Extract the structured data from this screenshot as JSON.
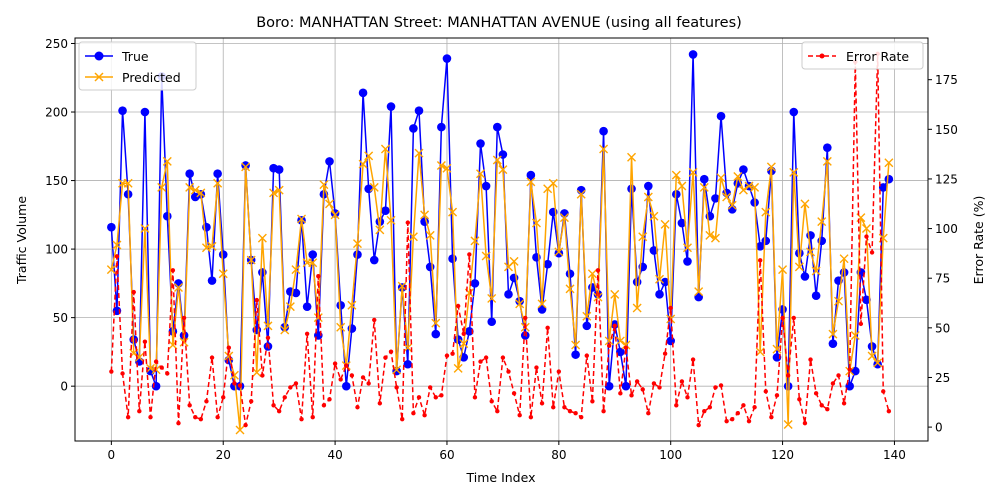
{
  "chart_data": {
    "type": "line",
    "title": "Boro: MANHATTAN Street: MANHATTAN AVENUE (using all features)",
    "xlabel": "Time Index",
    "ylabel": "Traffic Volume",
    "y2label": "Error Rate (%)",
    "xlim": [
      -6.5,
      146
    ],
    "ylim": [
      -40,
      254
    ],
    "y2lim": [
      -7,
      196
    ],
    "x_ticks": [
      0,
      20,
      40,
      60,
      80,
      100,
      120,
      140
    ],
    "y_ticks": [
      0,
      50,
      100,
      150,
      200,
      250
    ],
    "y2_ticks": [
      0,
      25,
      50,
      75,
      100,
      125,
      150,
      175
    ],
    "grid": true,
    "legend_left_placement": "upper-left",
    "legend_right_placement": "upper-right",
    "series": [
      {
        "name": "True",
        "axis": "left",
        "color": "#0000ff",
        "marker": "circle",
        "values": [
          116,
          55,
          201,
          140,
          34,
          18,
          200,
          11,
          0,
          226,
          124,
          40,
          75,
          37,
          155,
          138,
          140,
          116,
          77,
          155,
          96,
          19,
          0,
          0,
          161,
          92,
          41,
          83,
          29,
          159,
          158,
          43,
          69,
          68,
          121,
          58,
          96,
          37,
          140,
          164,
          126,
          59,
          0,
          42,
          96,
          214,
          144,
          92,
          120,
          128,
          204,
          11,
          72,
          16,
          188,
          201,
          120,
          87,
          38,
          189,
          239,
          93,
          34,
          21,
          40,
          75,
          177,
          146,
          47,
          189,
          169,
          67,
          79,
          62,
          37,
          154,
          94,
          56,
          89,
          127,
          97,
          126,
          82,
          23,
          143,
          44,
          72,
          67,
          186,
          0,
          45,
          25,
          0,
          144,
          76,
          87,
          146,
          99,
          67,
          76,
          33,
          140,
          119,
          91,
          242,
          65,
          151,
          124,
          137,
          197,
          141,
          129,
          148,
          158,
          146,
          134,
          102,
          106,
          157,
          21,
          56,
          0,
          200,
          97,
          80,
          110,
          66,
          106,
          174,
          31,
          77,
          83,
          0,
          11,
          83,
          63,
          29,
          16,
          145,
          151
        ]
      },
      {
        "name": "Predicted",
        "axis": "left",
        "color": "#ffa500",
        "marker": "x",
        "values": [
          85,
          103,
          148,
          148,
          24,
          21,
          115,
          13,
          12,
          145,
          164,
          30,
          72,
          32,
          145,
          143,
          141,
          101,
          102,
          148,
          82,
          22,
          8,
          -32,
          160,
          92,
          10,
          108,
          44,
          141,
          143,
          41,
          58,
          85,
          122,
          90,
          90,
          50,
          147,
          133,
          125,
          43,
          15,
          59,
          104,
          162,
          168,
          145,
          114,
          173,
          121,
          12,
          73,
          28,
          109,
          170,
          125,
          110,
          46,
          161,
          159,
          127,
          13,
          31,
          68,
          106,
          155,
          95,
          64,
          165,
          158,
          87,
          91,
          60,
          43,
          149,
          119,
          60,
          144,
          148,
          98,
          123,
          71,
          30,
          140,
          51,
          82,
          65,
          173,
          33,
          67,
          33,
          30,
          167,
          57,
          109,
          138,
          124,
          78,
          118,
          49,
          154,
          146,
          101,
          156,
          69,
          145,
          110,
          108,
          152,
          138,
          132,
          153,
          143,
          146,
          145,
          25,
          127,
          160,
          27,
          85,
          -28,
          156,
          87,
          133,
          98,
          84,
          120,
          164,
          38,
          62,
          93,
          11,
          37,
          123,
          115,
          22,
          17,
          108,
          163
        ]
      },
      {
        "name": "Error Rate",
        "axis": "right",
        "color": "#ff0000",
        "marker": "point",
        "dashed": true,
        "values": [
          28,
          86,
          27,
          5,
          68,
          8,
          43,
          5,
          33,
          30,
          27,
          79,
          2,
          55,
          11,
          5,
          4,
          13,
          35,
          5,
          15,
          40,
          22,
          21,
          1,
          13,
          64,
          26,
          45,
          11,
          8,
          15,
          20,
          22,
          4,
          47,
          5,
          76,
          11,
          14,
          32,
          24,
          31,
          26,
          10,
          25,
          22,
          54,
          12,
          35,
          38,
          20,
          4,
          103,
          7,
          15,
          6,
          20,
          15,
          16,
          36,
          37,
          61,
          47,
          87,
          15,
          33,
          35,
          13,
          8,
          35,
          28,
          17,
          6,
          55,
          5,
          30,
          12,
          50,
          10,
          28,
          10,
          8,
          7,
          5,
          36,
          13,
          79,
          8,
          41,
          51,
          17,
          40,
          16,
          23,
          19,
          7,
          22,
          20,
          37,
          60,
          11,
          23,
          15,
          34,
          1,
          8,
          10,
          20,
          21,
          3,
          4,
          7,
          11,
          3,
          10,
          84,
          18,
          5,
          16,
          55,
          26,
          55,
          14,
          2,
          34,
          17,
          11,
          9,
          22,
          26,
          12,
          29,
          184,
          52,
          96,
          88,
          188,
          18,
          8
        ]
      }
    ]
  }
}
